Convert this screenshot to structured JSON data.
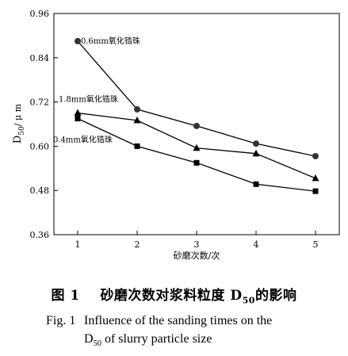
{
  "chart_data": {
    "type": "line",
    "x": [
      1,
      2,
      3,
      4,
      5
    ],
    "xlim": [
      0.6,
      5.4
    ],
    "ylim": [
      0.36,
      0.96
    ],
    "x_ticks": [
      "1",
      "2",
      "3",
      "4",
      "5"
    ],
    "y_ticks": [
      "0.36",
      "0.48",
      "0.60",
      "0.72",
      "0.84",
      "0.96"
    ],
    "y_tick_values": [
      0.36,
      0.48,
      0.6,
      0.72,
      0.84,
      0.96
    ],
    "xlabel": "砂磨次数/次",
    "ylabel_main": "D",
    "ylabel_sub": "50",
    "ylabel_unit": "/ μ m",
    "grid": false,
    "series": [
      {
        "name": "0.6mm氧化锆珠",
        "marker": "circle",
        "values": [
          0.885,
          0.7,
          0.655,
          0.607,
          0.573
        ]
      },
      {
        "name": "1.8mm氧化锆珠",
        "marker": "triangle",
        "values": [
          0.69,
          0.67,
          0.595,
          0.58,
          0.513
        ]
      },
      {
        "name": "0.4mm氧化锆珠",
        "marker": "square",
        "values": [
          0.675,
          0.6,
          0.555,
          0.497,
          0.478
        ]
      }
    ]
  },
  "caption": {
    "cn_prefix": "图 1",
    "cn_text_before": "砂磨次数对浆料粒度 D",
    "cn_sub": "50",
    "cn_text_after": "的影响",
    "en_label": "Fig. 1",
    "en_line1": "Influence of the sanding times on the",
    "en_line2_main": "D",
    "en_line2_sub": "50",
    "en_line2_rest": " of slurry particle size"
  }
}
